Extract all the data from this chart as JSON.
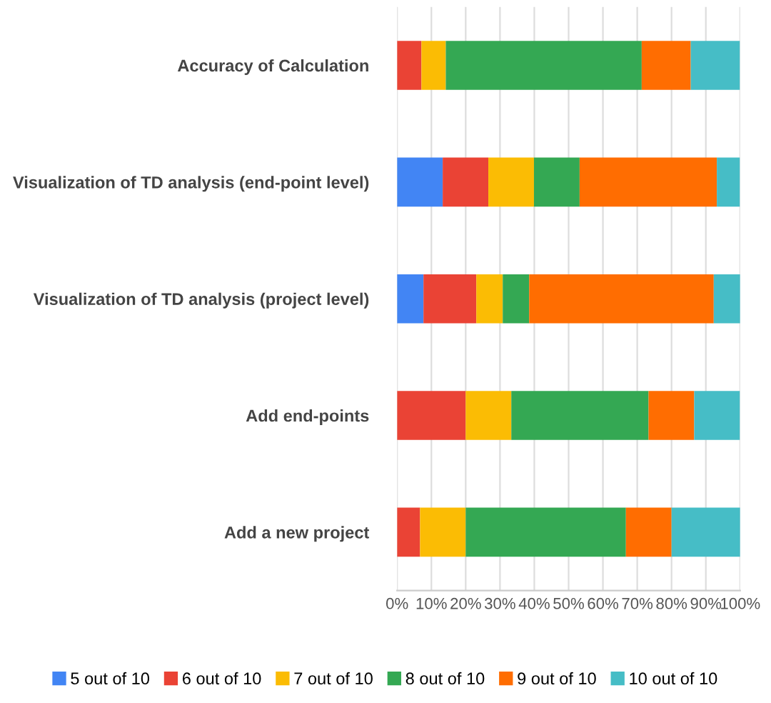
{
  "chart_data": {
    "type": "bar",
    "orientation": "horizontal",
    "stacked": true,
    "categories": [
      "Accuracy of Calculation",
      "Visualization of TD analysis (end-point level)",
      "Visualization of TD analysis (project level)",
      "Add end-points",
      "Add a new project"
    ],
    "series": [
      {
        "name": "5 out of 10",
        "color": "#4285f4",
        "values": [
          0,
          13.3,
          7.7,
          0,
          0
        ]
      },
      {
        "name": "6 out of 10",
        "color": "#ea4335",
        "values": [
          7.1,
          13.3,
          15.4,
          20.0,
          6.7
        ]
      },
      {
        "name": "7 out of 10",
        "color": "#fbbc04",
        "values": [
          7.1,
          13.3,
          7.7,
          13.3,
          13.3
        ]
      },
      {
        "name": "8 out of 10",
        "color": "#34a853",
        "values": [
          57.1,
          13.3,
          7.7,
          40.0,
          46.7
        ]
      },
      {
        "name": "9 out of 10",
        "color": "#ff6d01",
        "values": [
          14.3,
          40.0,
          53.8,
          13.3,
          13.3
        ]
      },
      {
        "name": "10 out of 10",
        "color": "#46bdc6",
        "values": [
          14.3,
          6.7,
          7.7,
          13.3,
          20.0
        ]
      }
    ],
    "xlim": [
      0,
      100
    ],
    "xticks": [
      {
        "value": 0,
        "label": "0%"
      },
      {
        "value": 10,
        "label": "10%"
      },
      {
        "value": 20,
        "label": "20%"
      },
      {
        "value": 30,
        "label": "30%"
      },
      {
        "value": 40,
        "label": "40%"
      },
      {
        "value": 50,
        "label": "50%"
      },
      {
        "value": 60,
        "label": "60%"
      },
      {
        "value": 70,
        "label": "70%"
      },
      {
        "value": 80,
        "label": "80%"
      },
      {
        "value": 90,
        "label": "90%"
      },
      {
        "value": 100,
        "label": "100%"
      }
    ],
    "grid": "x",
    "legend": "bottom"
  }
}
